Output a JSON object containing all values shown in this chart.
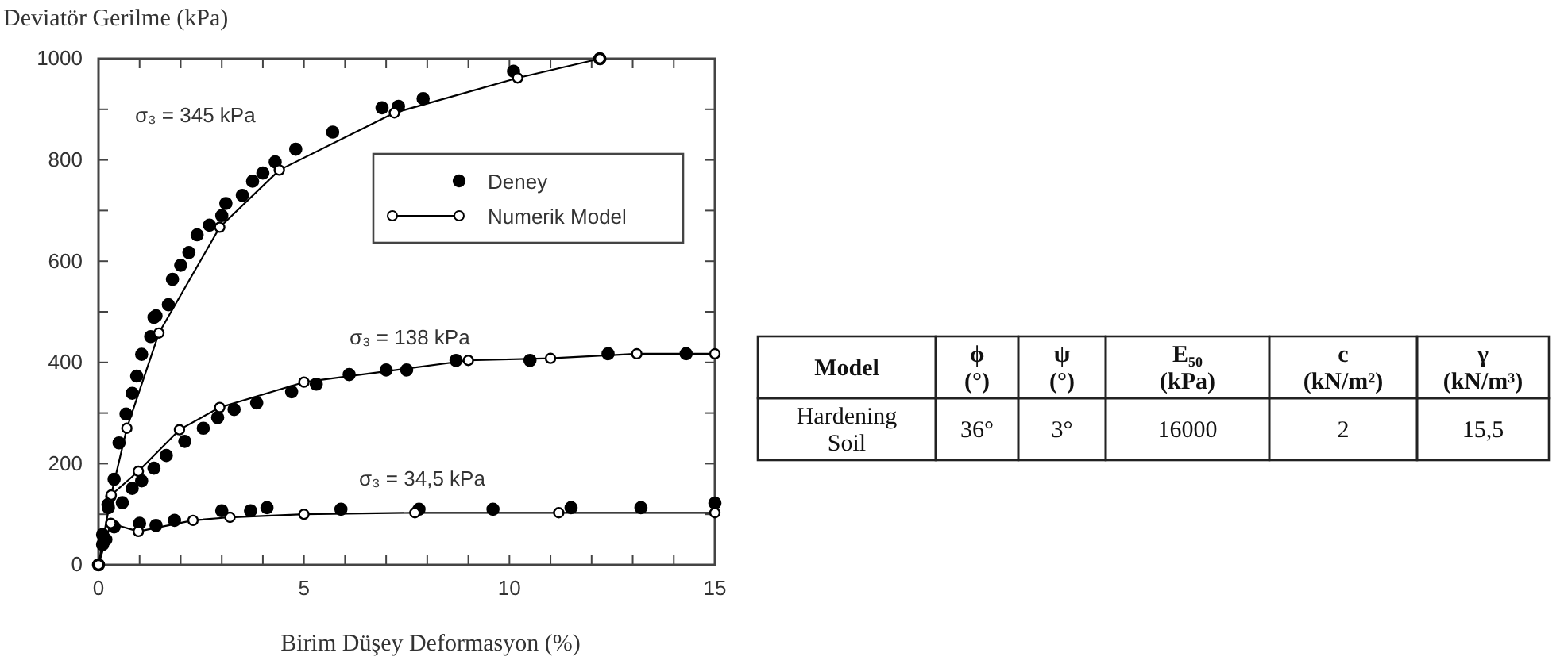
{
  "chart_data": [
    {
      "type": "scatter",
      "xlabel": "Birim Düşey Deformasyon (%)",
      "ylabel": "Deviatör Gerilme (kPa)",
      "xlim": [
        0,
        15
      ],
      "ylim": [
        0,
        1000
      ],
      "xticks": [
        0,
        {
          "value": 1,
          "label": null
        },
        {
          "value": 2,
          "label": null
        },
        {
          "value": 3,
          "label": null
        },
        {
          "value": 4,
          "label": null
        },
        5,
        {
          "value": 6,
          "label": null
        },
        {
          "value": 7,
          "label": null
        },
        {
          "value": 8,
          "label": null
        },
        {
          "value": 9,
          "label": null
        },
        10,
        {
          "value": 11,
          "label": null
        },
        {
          "value": 12,
          "label": null
        },
        {
          "value": 13,
          "label": null
        },
        {
          "value": 14,
          "label": null
        },
        15
      ],
      "yticks": [
        0,
        {
          "value": 100,
          "label": null
        },
        200,
        {
          "value": 300,
          "label": null
        },
        400,
        {
          "value": 500,
          "label": null
        },
        600,
        {
          "value": 700,
          "label": null
        },
        800,
        {
          "value": 900,
          "label": null
        },
        1000
      ],
      "grid": false,
      "legend": "top right",
      "series": [
        {
          "name": "Deney",
          "type": "scatter",
          "marker": "circle",
          "color": "#000000",
          "x": [
            0,
            0.1,
            0.24,
            0.38,
            0.5,
            0.67,
            0.82,
            0.93,
            1.05,
            1.27,
            1.35,
            1.4,
            1.7,
            1.8,
            2.0,
            2.2,
            2.4,
            2.7,
            3.0,
            3.1,
            3.5,
            3.75,
            4.0,
            4.3,
            4.8,
            5.7,
            6.9,
            7.3,
            7.9,
            10.1,
            12.2,
            0.23,
            0.58,
            0.82,
            1.05,
            1.35,
            1.65,
            2.1,
            2.55,
            2.9,
            3.3,
            3.85,
            4.7,
            5.3,
            6.1,
            7.0,
            7.5,
            8.7,
            10.5,
            12.4,
            14.3,
            0.1,
            0.18,
            0.38,
            1.0,
            1.4,
            1.85,
            3.0,
            3.7,
            4.1,
            5.9,
            7.8,
            9.6,
            11.5,
            13.2,
            15.0
          ],
          "values": [
            0,
            60,
            113,
            169,
            241,
            298,
            339,
            373,
            416,
            451,
            489,
            492,
            514,
            564,
            592,
            617,
            652,
            671,
            690,
            714,
            730,
            758,
            774,
            796,
            821,
            855,
            903,
            906,
            921,
            975,
            1000,
            119,
            123,
            151,
            166,
            191,
            216,
            244,
            270,
            291,
            307,
            320,
            342,
            357,
            376,
            385,
            385,
            404,
            404,
            417,
            417,
            40,
            50,
            75,
            82,
            78,
            88,
            107,
            107,
            113,
            110,
            110,
            110,
            113,
            113,
            122
          ]
        },
        {
          "name": "Numerik Model",
          "type": "line",
          "marker": "circle",
          "line_style": "solid",
          "color": "#000000",
          "x": [
            0,
            0.3,
            0.69,
            1.47,
            2.95,
            4.4,
            7.2,
            10.2,
            12.2,
            null,
            0,
            0.31,
            0.97,
            1.97,
            2.95,
            5.0,
            9.0,
            11.0,
            13.1,
            15,
            null,
            0,
            0.3,
            0.97,
            2.3,
            3.2,
            5.0,
            7.7,
            11.2,
            15
          ],
          "values": [
            0,
            135,
            270,
            458,
            667,
            780,
            893,
            962,
            1000,
            null,
            0,
            138,
            185,
            267,
            311,
            361,
            404,
            408,
            417,
            417,
            null,
            0,
            82,
            66,
            88,
            94,
            100,
            103,
            103,
            103
          ]
        }
      ],
      "annotations": [
        "σ₃ = 345  kPa",
        "σ₃ = 138  kPa",
        "σ₃ = 34,5  kPa"
      ]
    },
    {
      "type": "other",
      "categories": [
        "Model",
        "ϕ (°)",
        "ψ (°)",
        "E₅₀ (kPa)",
        "c (kN/m²)",
        "γ (kN/m³)"
      ],
      "cell_labels": [
        [
          "Hardening Soil",
          "36°",
          "3°",
          "16000",
          "2",
          "15,5"
        ]
      ]
    }
  ]
}
